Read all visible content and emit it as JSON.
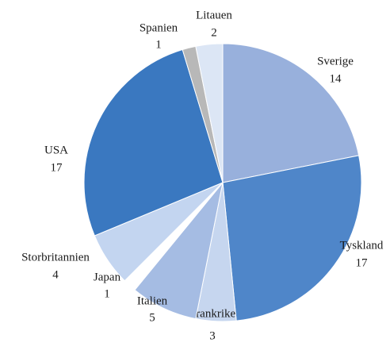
{
  "chart_data": {
    "type": "pie",
    "categories": [
      "Sverige",
      "Tyskland",
      "Frankrike",
      "Italien",
      "Japan",
      "Storbritannien",
      "USA",
      "Spanien",
      "Litauen"
    ],
    "values": [
      14,
      17,
      3,
      5,
      1,
      4,
      17,
      1,
      2
    ],
    "colors": [
      "#98b0dc",
      "#4f86c9",
      "#c6d6ef",
      "#a5bce3",
      "#ffffff",
      "#c3d5f0",
      "#3a78c0",
      "#b8b8b8",
      "#dce6f5"
    ]
  }
}
